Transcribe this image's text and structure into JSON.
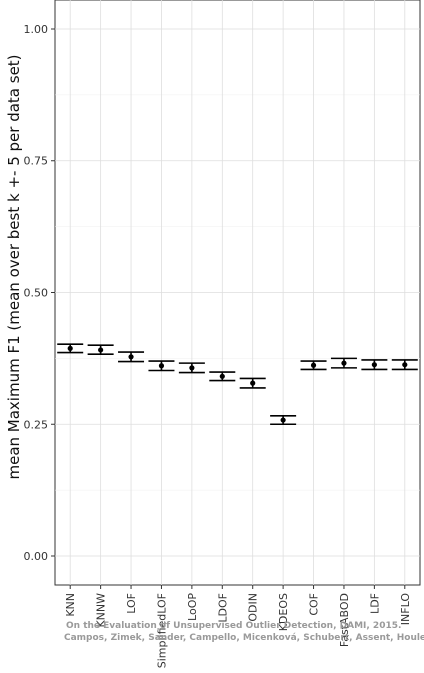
{
  "chart_data": {
    "type": "scatter",
    "ylabel": "mean Maximum F1 (mean over best k +- 5 per data set)",
    "xlabel": "",
    "ylim": [
      -0.055,
      1.055
    ],
    "yticks": [
      "0.00",
      "0.25",
      "0.50",
      "0.75",
      "1.00"
    ],
    "ytick_values": [
      0,
      0.25,
      0.5,
      0.75,
      1.0
    ],
    "grid": true,
    "categories": [
      "KNN",
      "KNNW",
      "LOF",
      "SimplifiedLOF",
      "LoOP",
      "LDOF",
      "ODIN",
      "KDEOS",
      "COF",
      "FastABOD",
      "LDF",
      "INFLO"
    ],
    "series": [
      {
        "values": [
          0.394,
          0.391,
          0.378,
          0.361,
          0.357,
          0.341,
          0.328,
          0.258,
          0.362,
          0.366,
          0.363,
          0.363
        ],
        "upper": [
          0.402,
          0.4,
          0.387,
          0.37,
          0.366,
          0.349,
          0.337,
          0.266,
          0.37,
          0.375,
          0.372,
          0.372
        ],
        "lower": [
          0.386,
          0.383,
          0.369,
          0.352,
          0.348,
          0.333,
          0.319,
          0.25,
          0.354,
          0.357,
          0.354,
          0.354
        ]
      }
    ],
    "annotations": [
      "On the Evaluation of Unsupervised Outlier Detection, DAMI, 2015.",
      "Campos, Zimek, Sander, Campello, Micenková, Schubert, Assent, Houle"
    ]
  }
}
